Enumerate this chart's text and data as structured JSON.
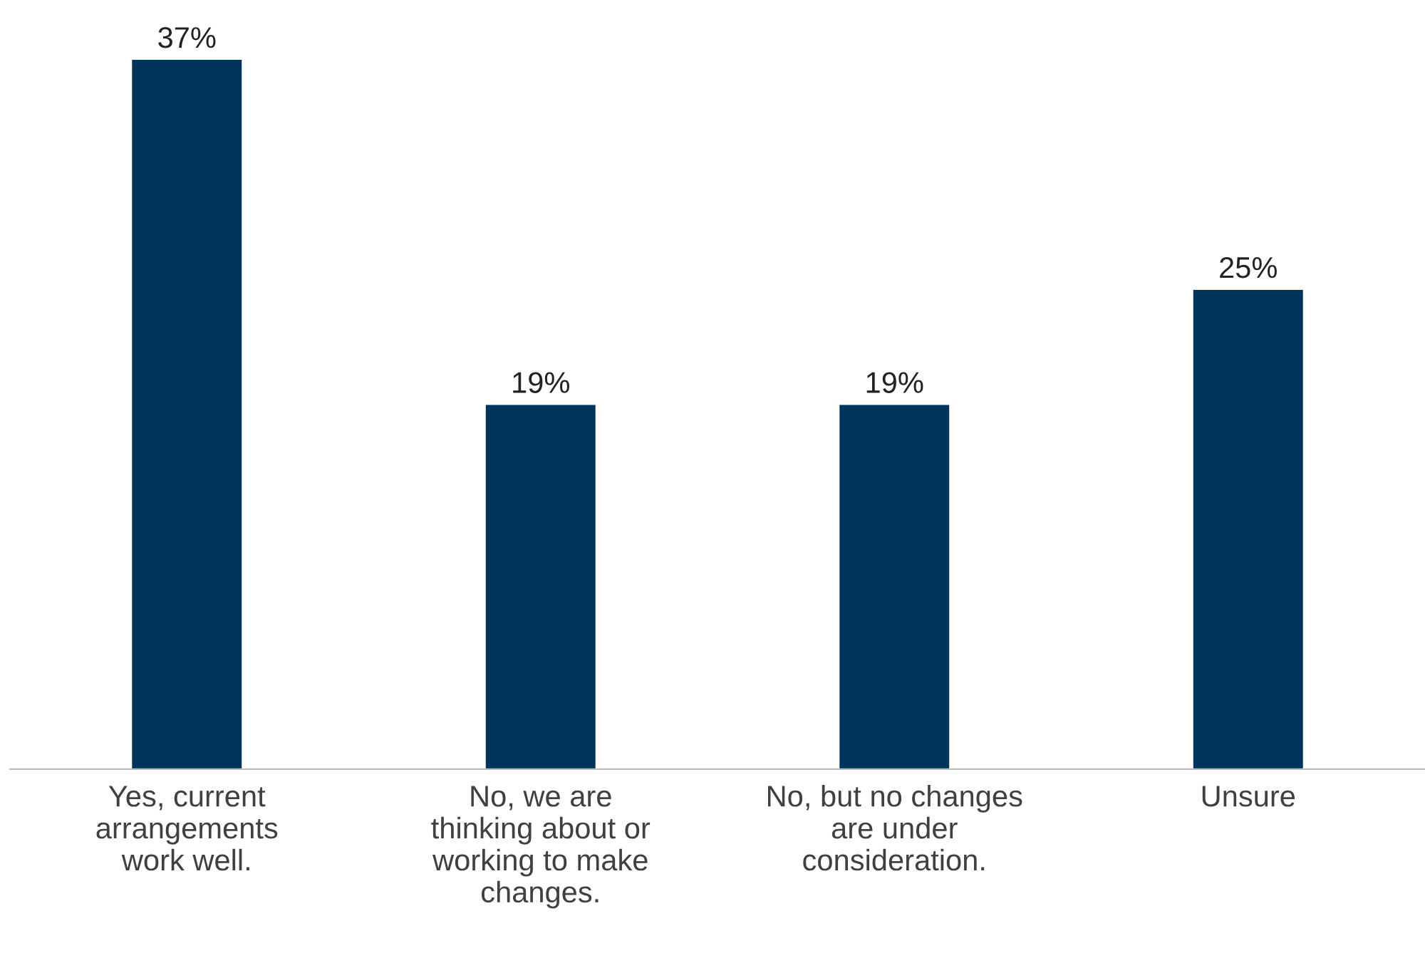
{
  "chart_data": {
    "type": "bar",
    "categories": [
      "Yes, current\narrangements\nwork well.",
      "No, we are\nthinking about or\nworking to make\nchanges.",
      "No, but no changes\nare under\nconsideration.",
      "Unsure"
    ],
    "values": [
      37,
      19,
      19,
      25
    ],
    "value_labels": [
      "37%",
      "19%",
      "19%",
      "25%"
    ],
    "color": "#003359",
    "tick_labels": "x",
    "grid": false,
    "legend": false
  }
}
